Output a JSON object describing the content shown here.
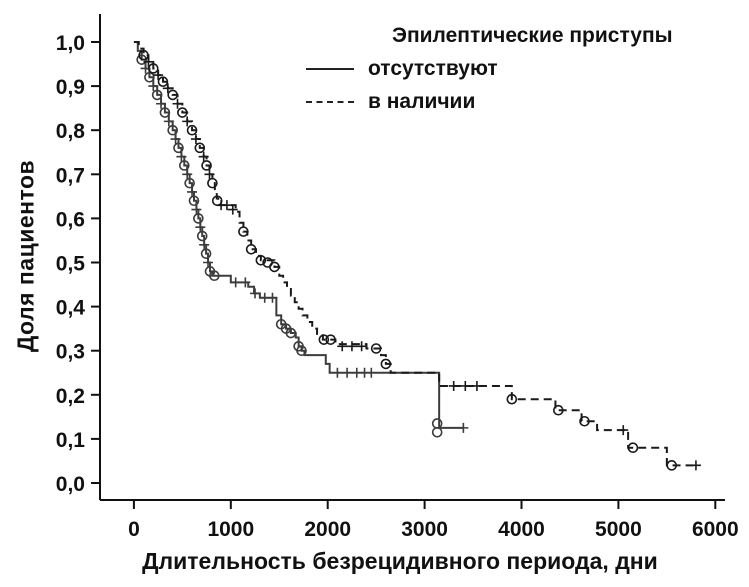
{
  "legend": {
    "title": "Эпилептические приступы",
    "items": [
      {
        "label": "отсутствуют",
        "line": "solid"
      },
      {
        "label": "в наличии",
        "line": "dashed"
      }
    ]
  },
  "chart_data": {
    "type": "line",
    "subtype": "kaplan-meier-step-survival",
    "title": "",
    "xlabel": "Длительность безрецидивного периода, дни",
    "ylabel": "Доля пациентов",
    "xlim": [
      -350,
      6100
    ],
    "ylim": [
      0.0,
      1.0
    ],
    "grid": false,
    "legend_position": "top-right-inside",
    "x_ticks": [
      {
        "v": 0,
        "label": "0"
      },
      {
        "v": 1000,
        "label": "1000"
      },
      {
        "v": 2000,
        "label": "2000"
      },
      {
        "v": 3000,
        "label": "3000"
      },
      {
        "v": 4000,
        "label": "4000"
      },
      {
        "v": 5000,
        "label": "5000"
      },
      {
        "v": 6000,
        "label": "6000"
      }
    ],
    "y_ticks": [
      {
        "v": 0.0,
        "label": "0,0"
      },
      {
        "v": 0.1,
        "label": "0,1"
      },
      {
        "v": 0.2,
        "label": "0,2"
      },
      {
        "v": 0.3,
        "label": "0,3"
      },
      {
        "v": 0.4,
        "label": "0,4"
      },
      {
        "v": 0.5,
        "label": "0,5"
      },
      {
        "v": 0.6,
        "label": "0,6"
      },
      {
        "v": 0.7,
        "label": "0,7"
      },
      {
        "v": 0.8,
        "label": "0,8"
      },
      {
        "v": 0.9,
        "label": "0,9"
      },
      {
        "v": 1.0,
        "label": "1,0"
      }
    ],
    "series": [
      {
        "name": "отсутствуют",
        "line": "solid",
        "color": "#3c3c3c",
        "points": [
          [
            0,
            1.0
          ],
          [
            40,
            0.98
          ],
          [
            80,
            0.96
          ],
          [
            120,
            0.94
          ],
          [
            160,
            0.92
          ],
          [
            200,
            0.9
          ],
          [
            240,
            0.88
          ],
          [
            280,
            0.86
          ],
          [
            320,
            0.84
          ],
          [
            360,
            0.82
          ],
          [
            400,
            0.8
          ],
          [
            430,
            0.78
          ],
          [
            460,
            0.76
          ],
          [
            490,
            0.74
          ],
          [
            520,
            0.72
          ],
          [
            550,
            0.7
          ],
          [
            575,
            0.68
          ],
          [
            600,
            0.66
          ],
          [
            620,
            0.64
          ],
          [
            645,
            0.62
          ],
          [
            665,
            0.6
          ],
          [
            685,
            0.58
          ],
          [
            705,
            0.56
          ],
          [
            725,
            0.54
          ],
          [
            745,
            0.52
          ],
          [
            765,
            0.5
          ],
          [
            785,
            0.48
          ],
          [
            810,
            0.47
          ],
          [
            1000,
            0.455
          ],
          [
            1180,
            0.445
          ],
          [
            1240,
            0.43
          ],
          [
            1300,
            0.42
          ],
          [
            1470,
            0.38
          ],
          [
            1520,
            0.36
          ],
          [
            1570,
            0.35
          ],
          [
            1620,
            0.34
          ],
          [
            1670,
            0.33
          ],
          [
            1700,
            0.31
          ],
          [
            1730,
            0.3
          ],
          [
            1760,
            0.29
          ],
          [
            1980,
            0.27
          ],
          [
            2020,
            0.25
          ],
          [
            3150,
            0.125
          ],
          [
            3400,
            0.125
          ]
        ],
        "markers": {
          "circle": [
            [
              80,
              0.96
            ],
            [
              160,
              0.92
            ],
            [
              240,
              0.88
            ],
            [
              320,
              0.84
            ],
            [
              400,
              0.8
            ],
            [
              460,
              0.76
            ],
            [
              520,
              0.72
            ],
            [
              575,
              0.68
            ],
            [
              620,
              0.64
            ],
            [
              665,
              0.6
            ],
            [
              705,
              0.56
            ],
            [
              745,
              0.52
            ],
            [
              785,
              0.48
            ],
            [
              830,
              0.47
            ],
            [
              1520,
              0.36
            ],
            [
              1570,
              0.35
            ],
            [
              1620,
              0.34
            ],
            [
              1700,
              0.31
            ],
            [
              1730,
              0.3
            ],
            [
              3130,
              0.135
            ],
            [
              3130,
              0.115
            ]
          ],
          "plus": [
            [
              120,
              0.94
            ],
            [
              200,
              0.9
            ],
            [
              280,
              0.86
            ],
            [
              360,
              0.82
            ],
            [
              430,
              0.78
            ],
            [
              490,
              0.74
            ],
            [
              550,
              0.7
            ],
            [
              600,
              0.66
            ],
            [
              645,
              0.62
            ],
            [
              685,
              0.58
            ],
            [
              725,
              0.54
            ],
            [
              765,
              0.5
            ],
            [
              1050,
              0.455
            ],
            [
              1150,
              0.455
            ],
            [
              1250,
              0.43
            ],
            [
              1350,
              0.42
            ],
            [
              1430,
              0.42
            ],
            [
              2100,
              0.25
            ],
            [
              2200,
              0.25
            ],
            [
              2300,
              0.25
            ],
            [
              2380,
              0.25
            ],
            [
              2450,
              0.25
            ],
            [
              3400,
              0.125
            ]
          ]
        }
      },
      {
        "name": "в наличии",
        "line": "dashed",
        "color": "#1a1a1a",
        "points": [
          [
            0,
            1.0
          ],
          [
            50,
            0.985
          ],
          [
            100,
            0.97
          ],
          [
            150,
            0.955
          ],
          [
            200,
            0.94
          ],
          [
            250,
            0.925
          ],
          [
            300,
            0.91
          ],
          [
            350,
            0.895
          ],
          [
            400,
            0.88
          ],
          [
            450,
            0.86
          ],
          [
            500,
            0.84
          ],
          [
            550,
            0.82
          ],
          [
            600,
            0.8
          ],
          [
            640,
            0.78
          ],
          [
            680,
            0.76
          ],
          [
            720,
            0.74
          ],
          [
            750,
            0.72
          ],
          [
            780,
            0.7
          ],
          [
            810,
            0.68
          ],
          [
            835,
            0.66
          ],
          [
            855,
            0.645
          ],
          [
            870,
            0.63
          ],
          [
            1050,
            0.615
          ],
          [
            1090,
            0.59
          ],
          [
            1130,
            0.57
          ],
          [
            1170,
            0.55
          ],
          [
            1210,
            0.53
          ],
          [
            1260,
            0.515
          ],
          [
            1310,
            0.505
          ],
          [
            1450,
            0.49
          ],
          [
            1500,
            0.47
          ],
          [
            1540,
            0.455
          ],
          [
            1580,
            0.44
          ],
          [
            1620,
            0.425
          ],
          [
            1660,
            0.41
          ],
          [
            1700,
            0.395
          ],
          [
            1740,
            0.38
          ],
          [
            1790,
            0.365
          ],
          [
            1840,
            0.35
          ],
          [
            1890,
            0.335
          ],
          [
            1950,
            0.325
          ],
          [
            2080,
            0.315
          ],
          [
            2400,
            0.305
          ],
          [
            2550,
            0.29
          ],
          [
            2600,
            0.27
          ],
          [
            2650,
            0.25
          ],
          [
            3150,
            0.22
          ],
          [
            3900,
            0.19
          ],
          [
            4350,
            0.165
          ],
          [
            4620,
            0.14
          ],
          [
            4780,
            0.12
          ],
          [
            5100,
            0.08
          ],
          [
            5500,
            0.04
          ],
          [
            5800,
            0.04
          ]
        ],
        "markers": {
          "circle": [
            [
              100,
              0.97
            ],
            [
              200,
              0.94
            ],
            [
              300,
              0.91
            ],
            [
              400,
              0.88
            ],
            [
              500,
              0.84
            ],
            [
              600,
              0.8
            ],
            [
              680,
              0.76
            ],
            [
              750,
              0.72
            ],
            [
              810,
              0.68
            ],
            [
              860,
              0.64
            ],
            [
              1130,
              0.57
            ],
            [
              1210,
              0.53
            ],
            [
              1310,
              0.505
            ],
            [
              1380,
              0.5
            ],
            [
              1450,
              0.49
            ],
            [
              1960,
              0.325
            ],
            [
              2030,
              0.325
            ],
            [
              2500,
              0.305
            ],
            [
              2600,
              0.27
            ],
            [
              3900,
              0.19
            ],
            [
              4380,
              0.165
            ],
            [
              4650,
              0.14
            ],
            [
              5150,
              0.08
            ],
            [
              5550,
              0.04
            ]
          ],
          "plus": [
            [
              150,
              0.955
            ],
            [
              250,
              0.925
            ],
            [
              350,
              0.895
            ],
            [
              450,
              0.86
            ],
            [
              550,
              0.82
            ],
            [
              640,
              0.78
            ],
            [
              720,
              0.74
            ],
            [
              780,
              0.7
            ],
            [
              900,
              0.63
            ],
            [
              960,
              0.63
            ],
            [
              1020,
              0.62
            ],
            [
              2150,
              0.31
            ],
            [
              2250,
              0.31
            ],
            [
              2350,
              0.31
            ],
            [
              3300,
              0.22
            ],
            [
              3420,
              0.22
            ],
            [
              3540,
              0.22
            ],
            [
              5050,
              0.12
            ],
            [
              5800,
              0.04
            ]
          ]
        }
      }
    ]
  }
}
